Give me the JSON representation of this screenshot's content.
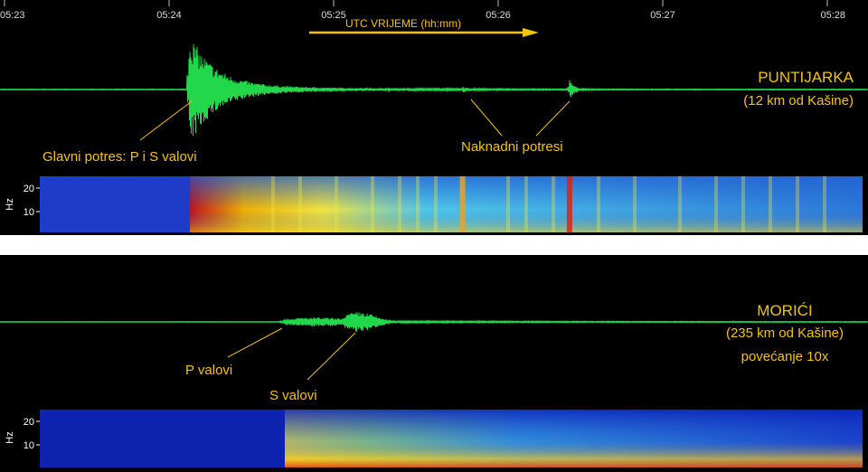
{
  "colors": {
    "trace": "#22d84a",
    "annotation": "#f5c400",
    "background": "#000000",
    "arrow": "#f5c400"
  },
  "time_axis": {
    "ticks": [
      "05:23",
      "05:24",
      "05:25",
      "05:26",
      "05:27",
      "05:28"
    ],
    "label": "UTC VRIJEME (hh:mm)"
  },
  "chart_data": [
    {
      "type": "line",
      "station": "PUNTIJARKA",
      "distance": "(12 km od Kašine)",
      "events": [
        {
          "label": "Glavni potres: P i S valovi",
          "time": "05:24:07",
          "peak_amplitude": 1.0
        },
        {
          "label": "Naknadni potresi",
          "time": "05:25:47",
          "peak_amplitude": 0.05
        },
        {
          "label": "Naknadni potresi",
          "time": "05:26:26",
          "peak_amplitude": 0.18
        }
      ],
      "annotations": [
        "Glavni potres: P i S valovi",
        "Naknadni potresi"
      ]
    },
    {
      "type": "heatmap",
      "station": "PUNTIJARKA",
      "ylabel": "Hz",
      "yticks": [
        20,
        10
      ],
      "onset_time": "05:24:08"
    },
    {
      "type": "line",
      "station": "MORIĆI",
      "distance": "(235 km od Kašine)",
      "note": "povećanje 10x",
      "events": [
        {
          "label": "P valovi",
          "time": "05:24:42",
          "peak_amplitude": 0.1
        },
        {
          "label": "S valovi",
          "time": "05:25:10",
          "peak_amplitude": 0.22
        }
      ],
      "annotations": [
        "P valovi",
        "S valovi"
      ]
    },
    {
      "type": "heatmap",
      "station": "MORIĆI",
      "ylabel": "Hz",
      "yticks": [
        20,
        10
      ],
      "onset_time": "05:24:43"
    }
  ]
}
